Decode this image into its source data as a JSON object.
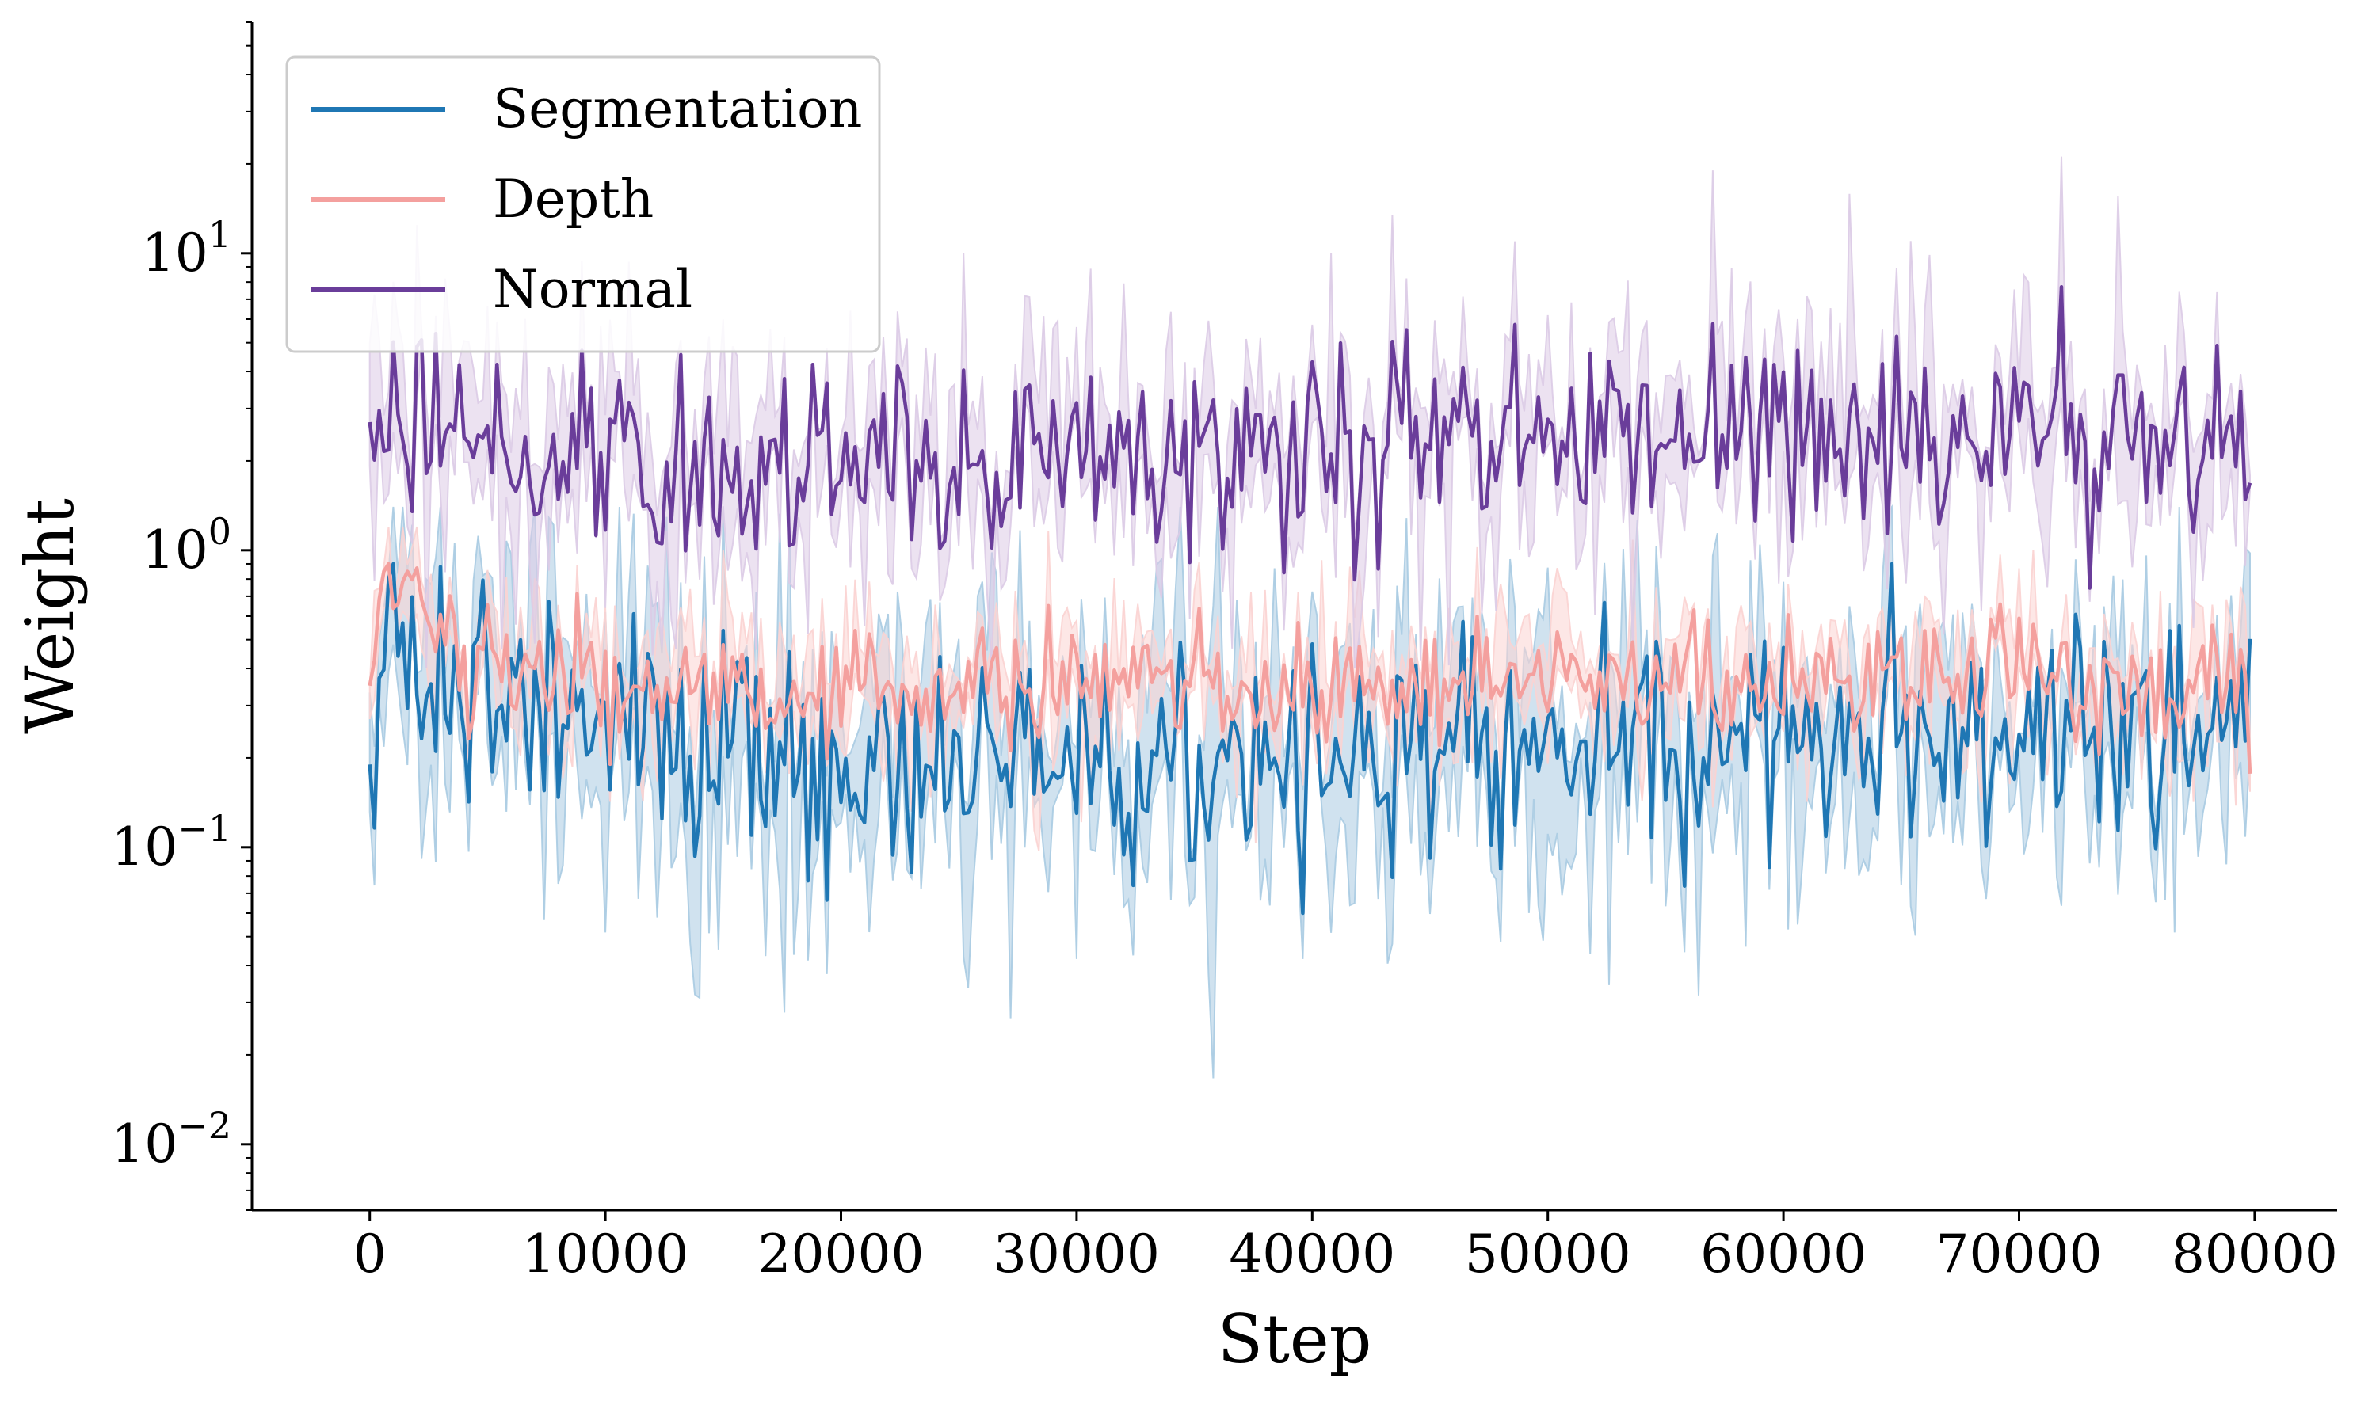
{
  "chart_data": {
    "type": "line",
    "title": "",
    "xlabel": "Step",
    "ylabel": "Weight",
    "xscale": "linear",
    "yscale": "log",
    "xlim": [
      -5000,
      83500
    ],
    "ylim": [
      0.006,
      60
    ],
    "xticks": [
      0,
      10000,
      20000,
      30000,
      40000,
      50000,
      60000,
      70000,
      80000
    ],
    "xtick_labels": [
      "0",
      "10000",
      "20000",
      "30000",
      "40000",
      "50000",
      "60000",
      "70000",
      "80000"
    ],
    "yticks": [
      {
        "value": 0.01,
        "base": "10",
        "exp": "−2"
      },
      {
        "value": 0.1,
        "base": "10",
        "exp": "−1"
      },
      {
        "value": 1,
        "base": "10",
        "exp": "0"
      },
      {
        "value": 10,
        "base": "10",
        "exp": "1"
      }
    ],
    "grid": false,
    "legend_position": "top-left",
    "x_start": 0,
    "x_end": 79800,
    "x_step": 200,
    "series": [
      {
        "name": "Segmentation",
        "color": "#1f77b4",
        "band_color": "#a9cbe2",
        "points": [
          [
            0,
            0.19
          ],
          [
            500,
            0.62
          ],
          [
            2000,
            0.45
          ],
          [
            5000,
            0.32
          ],
          [
            10000,
            0.24
          ],
          [
            20000,
            0.2
          ],
          [
            25000,
            0.17
          ],
          [
            30000,
            0.2
          ],
          [
            35000,
            0.17
          ],
          [
            40000,
            0.2
          ],
          [
            50000,
            0.21
          ],
          [
            60000,
            0.25
          ],
          [
            70000,
            0.24
          ],
          [
            79800,
            0.3
          ]
        ],
        "typical_range": [
          0.06,
          0.9
        ],
        "spread_range": [
          0.009,
          1.4
        ]
      },
      {
        "name": "Depth",
        "color": "#f4a09e",
        "band_color": "#fbd3d2",
        "points": [
          [
            0,
            0.35
          ],
          [
            500,
            0.82
          ],
          [
            3000,
            0.55
          ],
          [
            7000,
            0.4
          ],
          [
            10000,
            0.34
          ],
          [
            20000,
            0.34
          ],
          [
            30000,
            0.36
          ],
          [
            40000,
            0.35
          ],
          [
            50000,
            0.37
          ],
          [
            60000,
            0.36
          ],
          [
            70000,
            0.36
          ],
          [
            79800,
            0.36
          ]
        ],
        "typical_range": [
          0.15,
          0.9
        ],
        "spread_range": [
          0.035,
          1.2
        ]
      },
      {
        "name": "Normal",
        "color": "#6a3d9a",
        "band_color": "#dccbe6",
        "points": [
          [
            0,
            2.7
          ],
          [
            5000,
            2.2
          ],
          [
            10000,
            2.0
          ],
          [
            20000,
            1.9
          ],
          [
            30000,
            2.0
          ],
          [
            40000,
            2.2
          ],
          [
            50000,
            2.5
          ],
          [
            60000,
            2.6
          ],
          [
            70000,
            2.5
          ],
          [
            79800,
            2.6
          ]
        ],
        "typical_range": [
          0.5,
          14.5
        ],
        "spread_range": [
          0.4,
          36
        ]
      }
    ]
  }
}
